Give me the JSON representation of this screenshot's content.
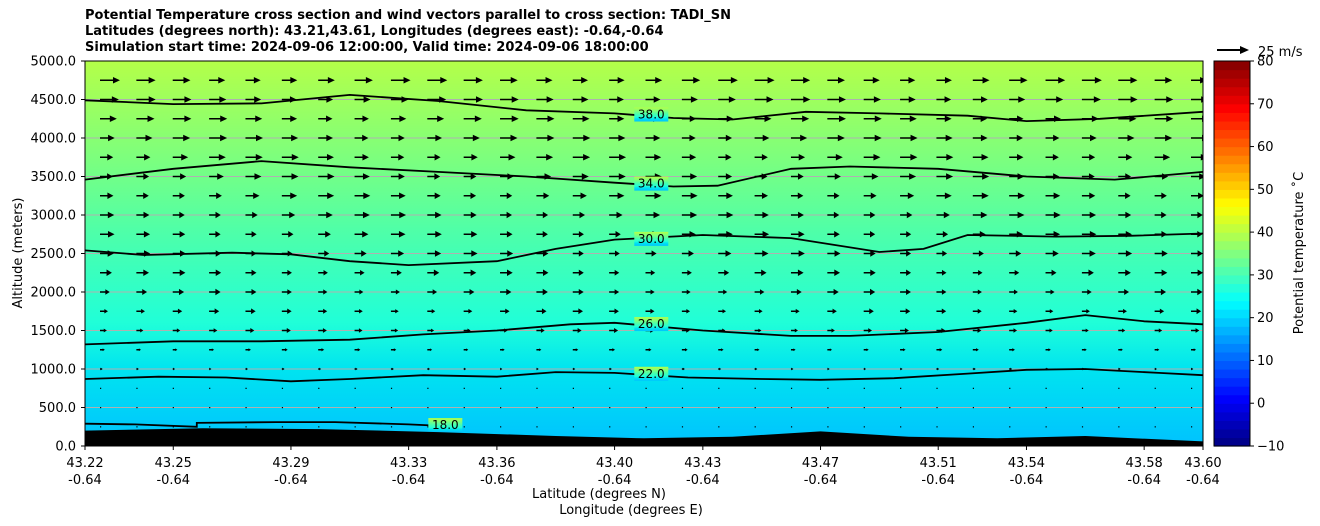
{
  "titles": [
    "Potential Temperature cross section and wind vectors parallel to cross section: TADI_SN",
    "Latitudes (degrees north): 43.21,43.61, Longitudes (degrees east): -0.64,-0.64",
    "Simulation start time: 2024-09-06 12:00:00, Valid time: 2024-09-06 18:00:00"
  ],
  "chart_data": {
    "type": "heatmap",
    "ylabel": "Altitude (meters)",
    "xlabel": "Latitude (degrees N)",
    "xlabel2": "Longitude (degrees E)",
    "ylim": [
      0,
      5000
    ],
    "yticks": [
      "0.0",
      "500.0",
      "1000.0",
      "1500.0",
      "2000.0",
      "2500.0",
      "3000.0",
      "3500.0",
      "4000.0",
      "4500.0",
      "5000.0"
    ],
    "xlim": [
      43.22,
      43.6
    ],
    "xticks": [
      {
        "lat": "43.22",
        "lon": "-0.64",
        "x": 43.22
      },
      {
        "lat": "43.25",
        "lon": "-0.64",
        "x": 43.25
      },
      {
        "lat": "43.29",
        "lon": "-0.64",
        "x": 43.29
      },
      {
        "lat": "43.33",
        "lon": "-0.64",
        "x": 43.33
      },
      {
        "lat": "43.36",
        "lon": "-0.64",
        "x": 43.36
      },
      {
        "lat": "43.40",
        "lon": "-0.64",
        "x": 43.4
      },
      {
        "lat": "43.43",
        "lon": "-0.64",
        "x": 43.43
      },
      {
        "lat": "43.47",
        "lon": "-0.64",
        "x": 43.47
      },
      {
        "lat": "43.51",
        "lon": "-0.64",
        "x": 43.51
      },
      {
        "lat": "43.54",
        "lon": "-0.64",
        "x": 43.54
      },
      {
        "lat": "43.58",
        "lon": "-0.64",
        "x": 43.58
      },
      {
        "lat": "43.60",
        "lon": "-0.64",
        "x": 43.6
      }
    ],
    "grid": "horizontal",
    "colorbar": {
      "label": "Potential temperature ˚C",
      "min": -10,
      "max": 80,
      "ticks": [
        "80",
        "70",
        "60",
        "50",
        "40",
        "30",
        "20",
        "10",
        "0",
        "−10"
      ],
      "colormap": "jet"
    },
    "quiver_key": "25 m/s",
    "contours": [
      {
        "label": "18.0",
        "points": [
          [
            43.22,
            290
          ],
          [
            43.237,
            280
          ],
          [
            43.258,
            250
          ],
          [
            43.258,
            300
          ],
          [
            43.285,
            310
          ],
          [
            43.305,
            310
          ],
          [
            43.33,
            280
          ],
          [
            43.342,
            260
          ]
        ]
      },
      {
        "label": "22.0",
        "points": [
          [
            43.22,
            870
          ],
          [
            43.245,
            900
          ],
          [
            43.268,
            890
          ],
          [
            43.29,
            840
          ],
          [
            43.31,
            870
          ],
          [
            43.335,
            920
          ],
          [
            43.36,
            900
          ],
          [
            43.38,
            960
          ],
          [
            43.4,
            950
          ],
          [
            43.425,
            890
          ],
          [
            43.45,
            870
          ],
          [
            43.47,
            860
          ],
          [
            43.495,
            880
          ],
          [
            43.52,
            940
          ],
          [
            43.54,
            990
          ],
          [
            43.56,
            1000
          ],
          [
            43.585,
            950
          ],
          [
            43.6,
            920
          ]
        ]
      },
      {
        "label": "26.0",
        "points": [
          [
            43.22,
            1320
          ],
          [
            43.25,
            1360
          ],
          [
            43.28,
            1360
          ],
          [
            43.31,
            1380
          ],
          [
            43.335,
            1450
          ],
          [
            43.36,
            1500
          ],
          [
            43.385,
            1580
          ],
          [
            43.4,
            1600
          ],
          [
            43.43,
            1500
          ],
          [
            43.46,
            1430
          ],
          [
            43.48,
            1430
          ],
          [
            43.51,
            1480
          ],
          [
            43.54,
            1600
          ],
          [
            43.56,
            1700
          ],
          [
            43.58,
            1620
          ],
          [
            43.6,
            1580
          ]
        ]
      },
      {
        "label": "30.0",
        "points": [
          [
            43.22,
            2540
          ],
          [
            43.24,
            2480
          ],
          [
            43.27,
            2510
          ],
          [
            43.29,
            2490
          ],
          [
            43.31,
            2400
          ],
          [
            43.33,
            2350
          ],
          [
            43.36,
            2400
          ],
          [
            43.38,
            2560
          ],
          [
            43.4,
            2680
          ],
          [
            43.43,
            2740
          ],
          [
            43.46,
            2700
          ],
          [
            43.49,
            2520
          ],
          [
            43.505,
            2560
          ],
          [
            43.52,
            2740
          ],
          [
            43.55,
            2720
          ],
          [
            43.575,
            2730
          ],
          [
            43.6,
            2760
          ]
        ]
      },
      {
        "label": "34.0",
        "points": [
          [
            43.22,
            3460
          ],
          [
            43.25,
            3600
          ],
          [
            43.28,
            3700
          ],
          [
            43.31,
            3620
          ],
          [
            43.34,
            3560
          ],
          [
            43.37,
            3500
          ],
          [
            43.4,
            3420
          ],
          [
            43.42,
            3370
          ],
          [
            43.435,
            3380
          ],
          [
            43.46,
            3600
          ],
          [
            43.48,
            3630
          ],
          [
            43.51,
            3600
          ],
          [
            43.54,
            3500
          ],
          [
            43.57,
            3460
          ],
          [
            43.6,
            3560
          ]
        ]
      },
      {
        "label": "38.0",
        "points": [
          [
            43.22,
            4490
          ],
          [
            43.25,
            4440
          ],
          [
            43.28,
            4450
          ],
          [
            43.31,
            4560
          ],
          [
            43.34,
            4480
          ],
          [
            43.37,
            4360
          ],
          [
            43.4,
            4320
          ],
          [
            43.42,
            4260
          ],
          [
            43.44,
            4240
          ],
          [
            43.465,
            4340
          ],
          [
            43.49,
            4320
          ],
          [
            43.52,
            4290
          ],
          [
            43.54,
            4220
          ],
          [
            43.565,
            4250
          ],
          [
            43.6,
            4340
          ]
        ]
      }
    ],
    "terrain": [
      [
        43.22,
        200
      ],
      [
        43.26,
        230
      ],
      [
        43.3,
        220
      ],
      [
        43.34,
        180
      ],
      [
        43.38,
        130
      ],
      [
        43.41,
        100
      ],
      [
        43.44,
        120
      ],
      [
        43.47,
        190
      ],
      [
        43.5,
        120
      ],
      [
        43.53,
        100
      ],
      [
        43.56,
        130
      ],
      [
        43.6,
        60
      ]
    ]
  }
}
